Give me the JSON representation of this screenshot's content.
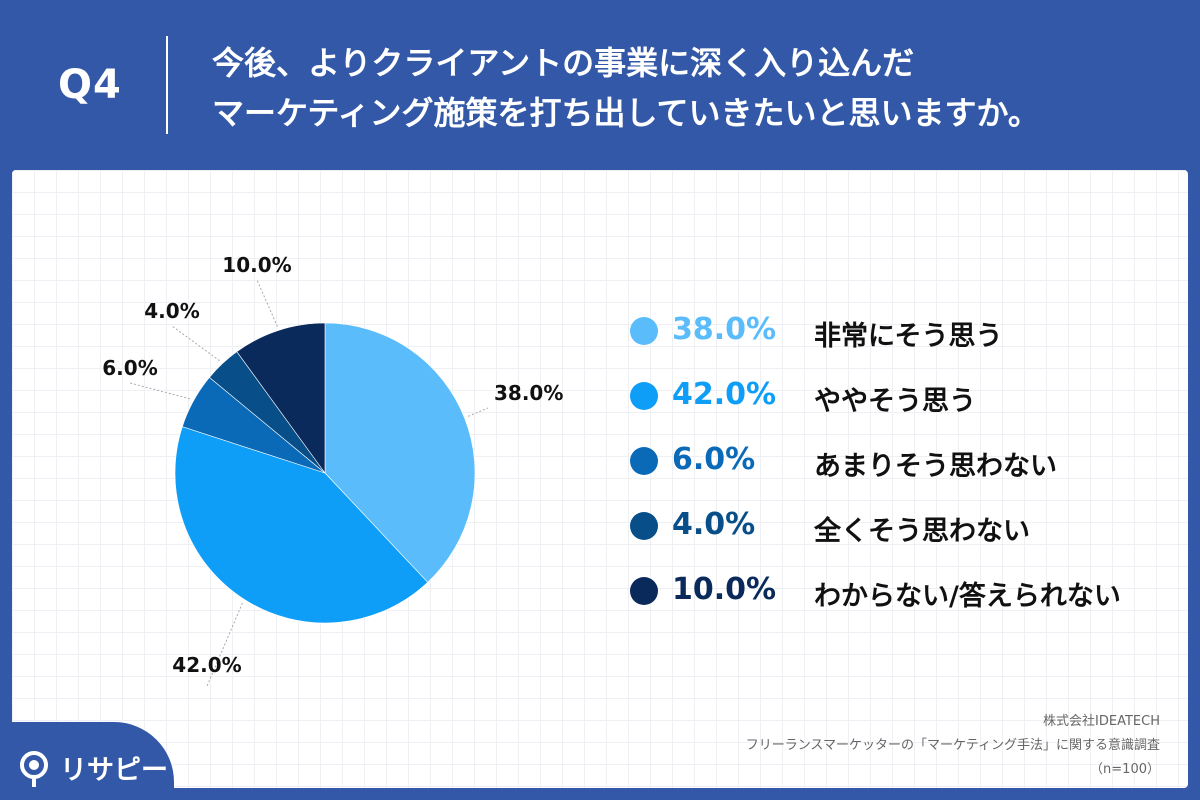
{
  "header": {
    "q_label": "Q4",
    "question_line1": "今後、よりクライアントの事業に深く入り込んだ",
    "question_line2": "マーケティング施策を打ち出していきたいと思いますか。"
  },
  "colors": {
    "background": "#3358a8",
    "series": [
      "#5bbcfb",
      "#0f9ef7",
      "#0b6ab8",
      "#084f8a",
      "#0a2a5c"
    ],
    "legend_pct": [
      "#5bbcfb",
      "#0f9ef7",
      "#0b6ab8",
      "#084f8a",
      "#0a2a5c"
    ]
  },
  "chart_data": {
    "type": "pie",
    "title": "",
    "start_angle_deg": 0,
    "direction": "clockwise",
    "labels": [
      "非常にそう思う",
      "ややそう思う",
      "あまりそう思わない",
      "全くそう思わない",
      "わからない/答えられない"
    ],
    "values": [
      38.0,
      42.0,
      6.0,
      4.0,
      10.0
    ],
    "data_labels": [
      "38.0%",
      "42.0%",
      "6.0%",
      "4.0%",
      "10.0%"
    ],
    "legend_position": "right"
  },
  "legend": [
    {
      "pct": "38.0%",
      "label": "非常にそう思う"
    },
    {
      "pct": "42.0%",
      "label": "ややそう思う"
    },
    {
      "pct": "6.0%",
      "label": "あまりそう思わない"
    },
    {
      "pct": "4.0%",
      "label": "全くそう思わない"
    },
    {
      "pct": "10.0%",
      "label": "わからない/答えられない"
    }
  ],
  "source": {
    "company": "株式会社IDEATECH",
    "survey": "フリーランスマーケッターの「マーケティング手法」に関する意識調査",
    "sample": "（n=100）"
  },
  "logo": {
    "text": "リサピー",
    "icon": "magnifier-icon"
  }
}
